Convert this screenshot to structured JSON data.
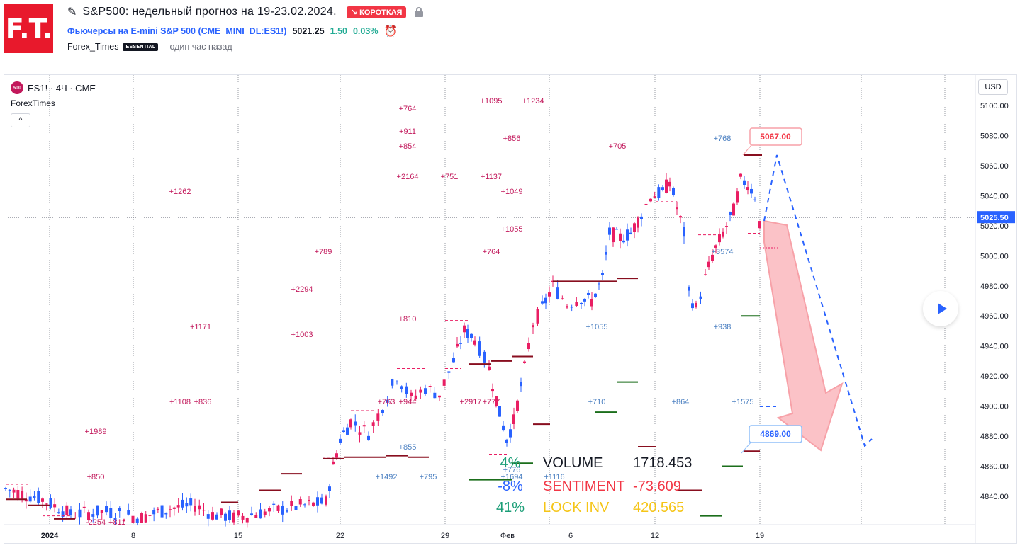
{
  "header": {
    "logo_text": "F.T.",
    "title": "S&P500: недельный прогноз на 19-23.02.2024.",
    "badge": "↘ КОРОТКАЯ",
    "symbol_name": "Фьючерсы на E-mini S&P 500",
    "symbol_code": "(CME_MINI_DL:ES1!)",
    "price": "5021.25",
    "change": "1.50",
    "change_pct": "0.03%",
    "author": "Forex_Times",
    "author_badge": "ESSENTIAL",
    "published": "один час назад"
  },
  "chart_legend": {
    "symbol": "ES1! · 4Ч · CME",
    "symbol_badge": "500",
    "indicator": "ForexTimes",
    "collapse": "^",
    "currency": "USD"
  },
  "chart_data": {
    "type": "candlestick",
    "y_ticks": [
      "5100.00",
      "5080.00",
      "5060.00",
      "5040.00",
      "5020.00",
      "5000.00",
      "4980.00",
      "4960.00",
      "4940.00",
      "4920.00",
      "4900.00",
      "4880.00",
      "4860.00",
      "4840.00"
    ],
    "x_ticks": [
      "2024",
      "8",
      "15",
      "22",
      "29",
      "Фев",
      "6",
      "12",
      "19"
    ],
    "ylim": [
      4822,
      5110
    ],
    "current_price_label": "5025.50",
    "target_high_label": "5067.00",
    "target_low_label": "4869.00",
    "stats": [
      {
        "pct": "4%",
        "label": "VOLUME",
        "value": "1718.453"
      },
      {
        "pct": "-8%",
        "label": "SENTIMENT",
        "value": "-73.609"
      },
      {
        "pct": "41%",
        "label": "LOCK INV",
        "value": "420.565"
      }
    ],
    "volume_annotations_pink": [
      "+764",
      "+911",
      "+854",
      "+2164",
      "+751",
      "+1137",
      "+1095",
      "+1234",
      "+856",
      "+1049",
      "+1055",
      "+764",
      "+705",
      "+1262",
      "+789",
      "+2294",
      "+1171",
      "+1003",
      "+810",
      "+1108",
      "+836",
      "+1989",
      "+850",
      "-2254",
      "+811",
      "+2917",
      "+777",
      "+763",
      "+944"
    ],
    "volume_annotations_blue": [
      "+768",
      "+3574",
      "+1055",
      "+938",
      "+710",
      "+864",
      "+1575",
      "+855",
      "+1492",
      "+795",
      "+1694",
      "+776",
      "+1116"
    ],
    "colors": {
      "up": "#2962ff",
      "down": "#e91e63",
      "accent_red": "#f23645",
      "accent_blue": "#2962ff"
    }
  }
}
